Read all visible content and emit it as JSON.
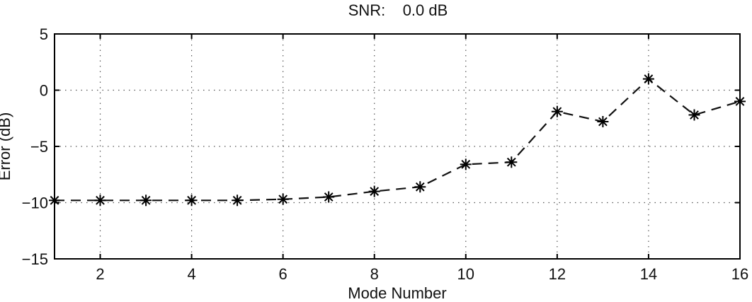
{
  "chart_data": {
    "type": "line",
    "title": "SNR:    0.0 dB",
    "xlabel": "Mode Number",
    "ylabel": "Error (dB)",
    "xlim": [
      1,
      16
    ],
    "ylim": [
      -15,
      5
    ],
    "xticks": [
      2,
      4,
      6,
      8,
      10,
      12,
      14,
      16
    ],
    "yticks": [
      5,
      0,
      -5,
      -10,
      -15
    ],
    "grid": true,
    "line_style": "dashed",
    "marker": "asterisk",
    "series": [
      {
        "x": [
          1,
          2,
          3,
          4,
          5,
          6,
          7,
          8,
          9,
          10,
          11,
          12,
          13,
          14,
          15,
          16
        ],
        "values": [
          -9.8,
          -9.8,
          -9.8,
          -9.8,
          -9.8,
          -9.7,
          -9.5,
          -9.0,
          -8.6,
          -6.6,
          -6.4,
          -1.9,
          -2.8,
          1.0,
          -2.2,
          -1.0
        ]
      }
    ]
  }
}
